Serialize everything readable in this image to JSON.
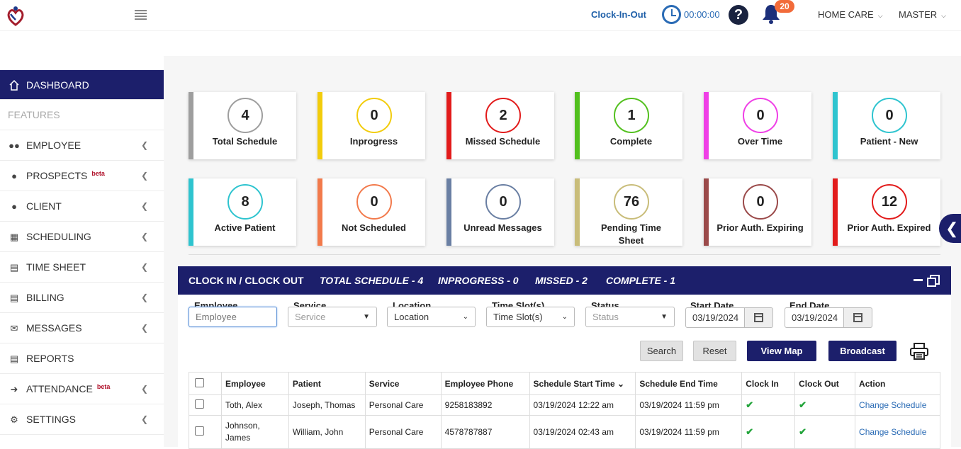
{
  "header": {
    "clock_label": "Clock-In-Out",
    "clock_time": "00:00:00",
    "help_glyph": "?",
    "notification_count": "20",
    "menu_home_care": "HOME CARE",
    "menu_master": "MASTER"
  },
  "sidebar": {
    "dashboard": "DASHBOARD",
    "features": "FEATURES",
    "beta": "beta",
    "items": [
      {
        "label": "EMPLOYEE",
        "icon": "users-icon"
      },
      {
        "label": "PROSPECTS",
        "icon": "user-icon"
      },
      {
        "label": "CLIENT",
        "icon": "user-icon"
      },
      {
        "label": "SCHEDULING",
        "icon": "calendar-icon"
      },
      {
        "label": "TIME SHEET",
        "icon": "bar-chart-icon"
      },
      {
        "label": "BILLING",
        "icon": "document-icon"
      },
      {
        "label": "MESSAGES",
        "icon": "envelope-icon"
      },
      {
        "label": "REPORTS",
        "icon": "bar-chart-icon"
      },
      {
        "label": "ATTENDANCE",
        "icon": "sign-in-icon"
      },
      {
        "label": "SETTINGS",
        "icon": "gear-icon"
      }
    ]
  },
  "cards": [
    {
      "value": "4",
      "label": "Total Schedule",
      "color": "#9e9e9e"
    },
    {
      "value": "0",
      "label": "Inprogress",
      "color": "#f2cc0c"
    },
    {
      "value": "2",
      "label": "Missed Schedule",
      "color": "#e21b1b"
    },
    {
      "value": "1",
      "label": "Complete",
      "color": "#52c01e"
    },
    {
      "value": "0",
      "label": "Over Time",
      "color": "#ef3fe6"
    },
    {
      "value": "0",
      "label": "Patient - New",
      "color": "#2ec4cf"
    },
    {
      "value": "8",
      "label": "Active Patient",
      "color": "#2ec4cf"
    },
    {
      "value": "0",
      "label": "Not Scheduled",
      "color": "#f27a4c"
    },
    {
      "value": "0",
      "label": "Unread Messages",
      "color": "#6a7fa3"
    },
    {
      "value": "76",
      "label": "Pending Time Sheet",
      "color": "#c9bd7a"
    },
    {
      "value": "0",
      "label": "Prior Auth. Expiring",
      "color": "#9b4a4a"
    },
    {
      "value": "12",
      "label": "Prior Auth. Expired",
      "color": "#e21b1b"
    }
  ],
  "panel": {
    "title": "CLOCK IN / CLOCK OUT",
    "total": "TOTAL SCHEDULE - 4",
    "inprogress": "INPROGRESS - 0",
    "missed": "MISSED - 2",
    "complete": "COMPLETE - 1"
  },
  "filters": {
    "employee_label": "Employee",
    "employee_placeholder": "Employee",
    "service_label": "Service",
    "service_value": "Service",
    "location_label": "Location",
    "location_value": "Location",
    "timeslot_label": "Time Slot(s)",
    "timeslot_value": "Time Slot(s)",
    "status_label": "Status",
    "status_value": "Status",
    "start_label": "Start Date",
    "start_value": "03/19/2024",
    "end_label": "End Date",
    "end_value": "03/19/2024"
  },
  "buttons": {
    "search": "Search",
    "reset": "Reset",
    "view_map": "View Map",
    "broadcast": "Broadcast"
  },
  "table": {
    "headers": [
      "Employee",
      "Patient",
      "Service",
      "Employee Phone",
      "Schedule Start Time",
      "Schedule End Time",
      "Clock In",
      "Clock Out",
      "Action"
    ],
    "rows": [
      {
        "employee": "Toth, Alex",
        "patient": "Joseph, Thomas",
        "service": "Personal Care",
        "phone": "9258183892",
        "start": "03/19/2024 12:22 am",
        "end": "03/19/2024 11:59 pm",
        "clock_in": "✔",
        "clock_out": "✔",
        "action": "Change Schedule"
      },
      {
        "employee": "Johnson, James",
        "patient": "William, John",
        "service": "Personal Care",
        "phone": "4578787887",
        "start": "03/19/2024 02:43 am",
        "end": "03/19/2024 11:59 pm",
        "clock_in": "✔",
        "clock_out": "✔",
        "action": "Change Schedule"
      }
    ]
  }
}
